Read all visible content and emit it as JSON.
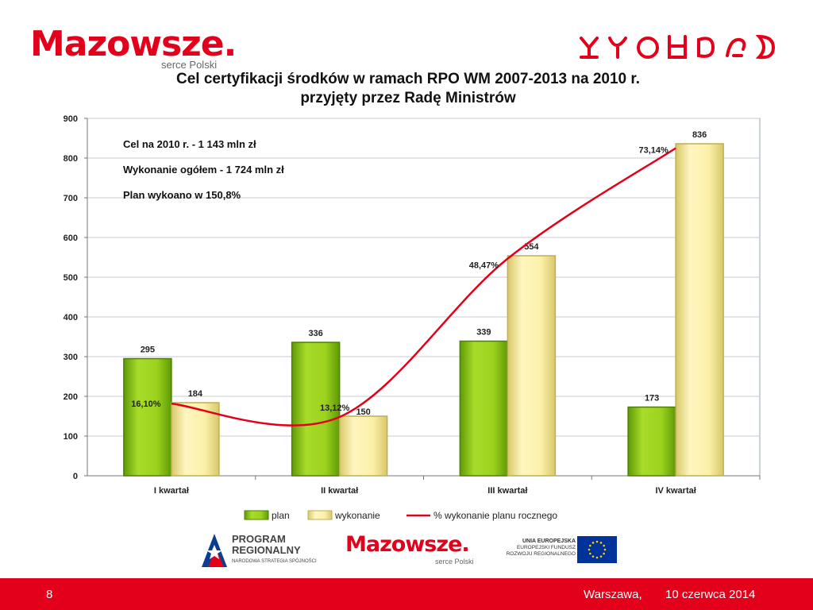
{
  "header": {
    "brand": "Mazowsze.",
    "brand_tagline": "serce Polski",
    "title_line1": "Cel certyfikacji środków w ramach RPO WM 2007-2013 na 2010 r.",
    "title_line2": "przyjęty przez Radę Ministrów"
  },
  "chart_data": {
    "type": "bar",
    "categories": [
      "I kwartał",
      "II kwartał",
      "III kwartał",
      "IV kwartał"
    ],
    "series": [
      {
        "name": "plan",
        "values": [
          295,
          336,
          339,
          173
        ],
        "color": "#8cc614"
      },
      {
        "name": "wykonanie",
        "values": [
          184,
          150,
          554,
          836
        ],
        "color": "#f7eba0"
      }
    ],
    "line_series": {
      "name": "% wykonanie planu rocznego",
      "values": [
        16.1,
        13.12,
        48.47,
        73.14
      ],
      "labels": [
        "16,10%",
        "13,12%",
        "48,47%",
        "73,14%"
      ],
      "color": "#e3001b"
    },
    "ylim": [
      0,
      900
    ],
    "yticks": [
      0,
      100,
      200,
      300,
      400,
      500,
      600,
      700,
      800,
      900
    ],
    "grid": true,
    "legend": "bottom",
    "annotations": [
      "Cel na 2010 r. - 1 143 mln zł",
      "Wykonanie ogółem - 1 724 mln zł",
      "Plan wykoano w 150,8%"
    ]
  },
  "logos": {
    "program_title": "PROGRAM REGIONALNY",
    "program_subtitle": "NARODOWA STRATEGIA SPÓJNOŚCI",
    "brand": "Mazowsze.",
    "brand_tagline": "serce Polski",
    "eu_line1": "UNIA EUROPEJSKA",
    "eu_line2": "EUROPEJSKI FUNDUSZ",
    "eu_line3": "ROZWOJU REGIONALNEGO"
  },
  "footer": {
    "page_number": "8",
    "place": "Warszawa,",
    "date": "10 czerwca 2014"
  },
  "colors": {
    "brand_red": "#e3001b",
    "plan_green": "#8cc614",
    "wykonanie_cream": "#f7eba0"
  }
}
